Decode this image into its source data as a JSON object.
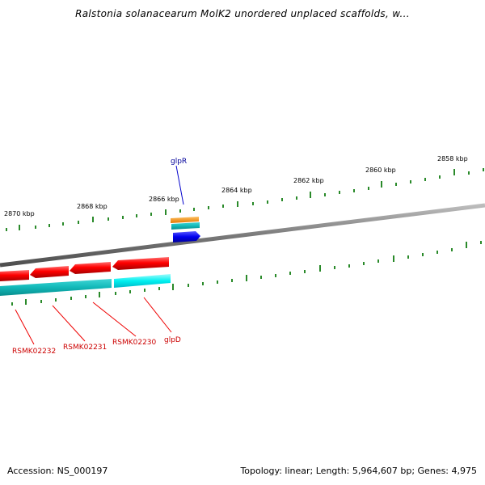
{
  "title": "Ralstonia solanacearum MolK2 unordered unplaced scaffolds, w...",
  "accession": "Accession: NS_000197",
  "summary": "Topology: linear; Length: 5,964,607 bp; Genes: 4,975",
  "scale_labels": [
    {
      "id": "2870",
      "text": "2870 kbp"
    },
    {
      "id": "2868",
      "text": "2868 kbp"
    },
    {
      "id": "2866",
      "text": "2866 kbp"
    },
    {
      "id": "2864",
      "text": "2864 kbp"
    },
    {
      "id": "2862",
      "text": "2862 kbp"
    },
    {
      "id": "2860",
      "text": "2860 kbp"
    },
    {
      "id": "2858",
      "text": "2858 kbp"
    }
  ],
  "genes": [
    {
      "id": "glpR",
      "label": "glpR",
      "color": "#00009a"
    },
    {
      "id": "RSMK02232",
      "label": "RSMK02232",
      "color": "#cc0000"
    },
    {
      "id": "RSMK02231",
      "label": "RSMK02231",
      "color": "#cc0000"
    },
    {
      "id": "RSMK02230",
      "label": "RSMK02230",
      "color": "#cc0000"
    },
    {
      "id": "glpD",
      "label": "glpD",
      "color": "#cc0000"
    }
  ],
  "colors": {
    "backbone": "#8a8a8a",
    "ticks": "#2a8a2a",
    "cds_red": "#ff0000",
    "cds_cyan": "#00e0e0",
    "cds_blue": "#0000ff",
    "cds_orange": "#ff8800"
  }
}
